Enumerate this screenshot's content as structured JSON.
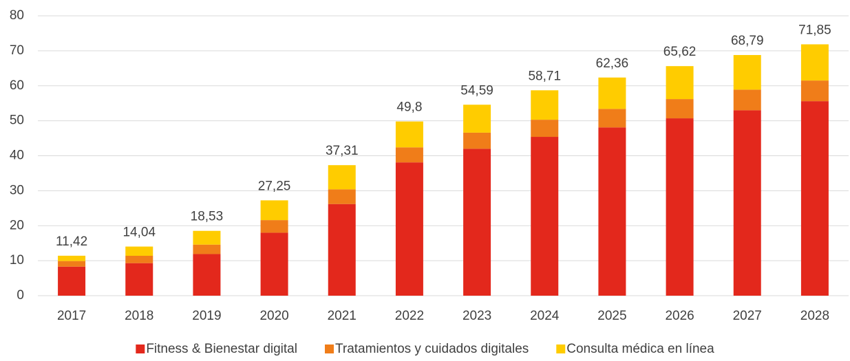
{
  "chart_data": {
    "type": "stacked_bar",
    "categories": [
      "2017",
      "2018",
      "2019",
      "2020",
      "2021",
      "2022",
      "2023",
      "2024",
      "2025",
      "2026",
      "2027",
      "2028"
    ],
    "series": [
      {
        "name": "Fitness & Bienestar digital",
        "color": "#e3281c",
        "values": [
          8.3,
          9.3,
          11.9,
          18.0,
          26.2,
          38.1,
          42.0,
          45.4,
          48.1,
          50.7,
          53.0,
          55.6
        ]
      },
      {
        "name": "Tratamientos y cuidados digitales",
        "color": "#f07d19",
        "values": [
          1.6,
          2.1,
          2.7,
          3.6,
          4.2,
          4.3,
          4.6,
          4.9,
          5.3,
          5.5,
          5.9,
          5.9
        ]
      },
      {
        "name": "Consulta médica en línea",
        "color": "#ffcc00",
        "values": [
          1.52,
          2.64,
          3.93,
          5.65,
          6.91,
          7.4,
          7.99,
          8.41,
          8.96,
          9.42,
          9.89,
          10.35
        ]
      }
    ],
    "totals": {
      "values": [
        11.42,
        14.04,
        18.53,
        27.25,
        37.31,
        49.8,
        54.59,
        58.71,
        62.36,
        65.62,
        68.79,
        71.85
      ],
      "value_labels": [
        "11,42",
        "14,04",
        "18,53",
        "27,25",
        "37,31",
        "49,8",
        "54,59",
        "58,71",
        "62,36",
        "65,62",
        "68,79",
        "71,85"
      ]
    },
    "ylim": [
      0,
      80
    ],
    "yticks": [
      0,
      10,
      20,
      30,
      40,
      50,
      60,
      70,
      80
    ],
    "grid": true,
    "legend": "bottom"
  }
}
